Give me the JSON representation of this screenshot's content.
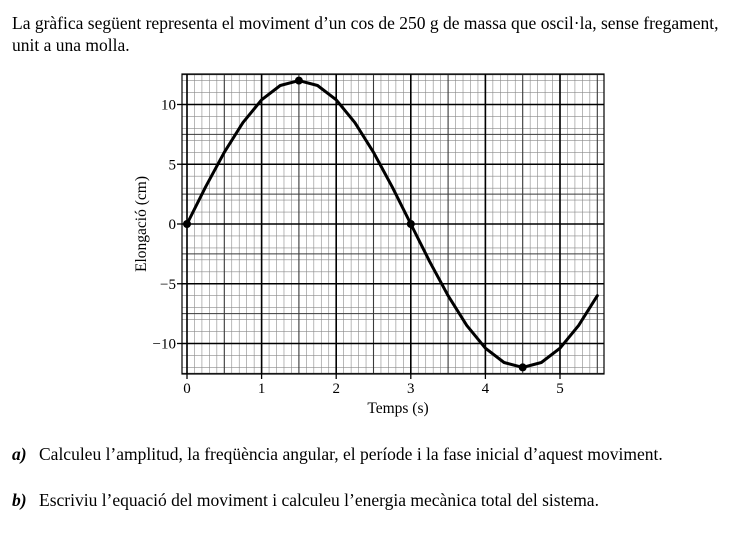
{
  "intro_text": "La gràfica següent representa el moviment d’un cos de 250 g de massa que oscil·la, sense fregament, unit a una molla.",
  "questions": [
    {
      "letter": "a)",
      "text": "Calculeu l’amplitud, la freqüència angular, el període i la fase inicial d’aquest moviment."
    },
    {
      "letter": "b)",
      "text": "Escriviu l’equació del moviment i calculeu l’energia mecànica total del sistema."
    }
  ],
  "chart_data": {
    "type": "line",
    "xlabel": "Temps (s)",
    "ylabel": "Elongació (cm)",
    "xlim": [
      0,
      5.5
    ],
    "ylim": [
      -12,
      12
    ],
    "x_ticks": [
      0,
      1,
      2,
      3,
      4,
      5
    ],
    "x_tick_labels": [
      "0",
      "1",
      "2",
      "3",
      "4",
      "5"
    ],
    "y_ticks": [
      10,
      5,
      0,
      -5,
      -10
    ],
    "y_tick_labels": [
      "10",
      "5",
      "0",
      "−5",
      "−10"
    ],
    "grid": true,
    "series": [
      {
        "x": [
          0,
          0.25,
          0.5,
          0.75,
          1,
          1.25,
          1.5,
          1.75,
          2,
          2.25,
          2.5,
          2.75,
          3,
          3.25,
          3.5,
          3.75,
          4,
          4.25,
          4.5,
          4.75,
          5,
          5.25,
          5.5
        ],
        "y": [
          0,
          3.11,
          6,
          8.49,
          10.39,
          11.59,
          12,
          11.59,
          10.39,
          8.49,
          6,
          3.11,
          0,
          -3.11,
          -6,
          -8.49,
          -10.39,
          -11.59,
          -12,
          -11.59,
          -10.39,
          -8.49,
          -6
        ]
      }
    ],
    "marked_points": [
      {
        "x": 0,
        "y": 0
      },
      {
        "x": 1.5,
        "y": 12
      },
      {
        "x": 3,
        "y": 0
      },
      {
        "x": 4.5,
        "y": -12
      }
    ]
  }
}
